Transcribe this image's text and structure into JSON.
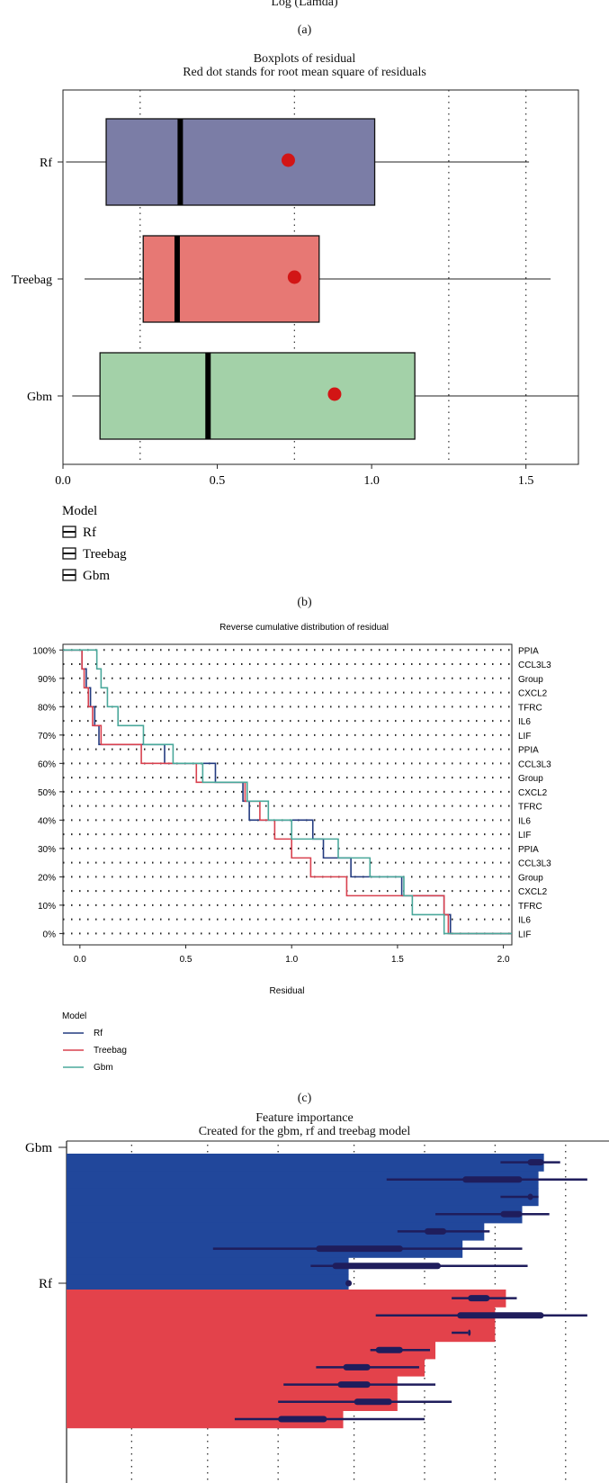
{
  "top_axis_label": "Log (Lamda)",
  "captions": {
    "a": "(a)",
    "b": "(b)",
    "c": "(c)"
  },
  "chart_data": [
    {
      "type": "boxplot",
      "title": "Boxplots of residual",
      "subtitle": "Red dot stands for root mean square of residuals",
      "xlim": [
        0.0,
        1.67
      ],
      "xticks": [
        0.0,
        0.5,
        1.0,
        1.5
      ],
      "xtick_labels": [
        "0.0",
        "0.5",
        "1.0",
        "1.5"
      ],
      "grid_x": [
        0.25,
        0.75,
        1.25,
        1.5
      ],
      "legend_title": "Model",
      "legend": [
        "Rf",
        "Treebag",
        "Gbm"
      ],
      "series": [
        {
          "name": "Rf",
          "color": "#7b7da6",
          "whisker_low": 0.01,
          "q1": 0.14,
          "median": 0.38,
          "q3": 1.01,
          "whisker_high": 1.51,
          "rmse": 0.73
        },
        {
          "name": "Treebag",
          "color": "#e77874",
          "whisker_low": 0.07,
          "q1": 0.26,
          "median": 0.37,
          "q3": 0.83,
          "whisker_high": 1.58,
          "rmse": 0.75
        },
        {
          "name": "Gbm",
          "color": "#a3d1a8",
          "whisker_low": 0.03,
          "q1": 0.12,
          "median": 0.47,
          "q3": 1.14,
          "whisker_high": 1.67,
          "rmse": 0.88
        }
      ]
    },
    {
      "type": "line",
      "title": "Reverse cumulative distribution of residual",
      "xlabel": "Residual",
      "xlim": [
        -0.08,
        2.04
      ],
      "xticks": [
        0.0,
        0.5,
        1.0,
        1.5,
        2.0
      ],
      "xtick_labels": [
        "0.0",
        "0.5",
        "1.0",
        "1.5",
        "2.0"
      ],
      "ylim": [
        -4,
        102
      ],
      "yticks": [
        0,
        10,
        20,
        30,
        40,
        50,
        60,
        70,
        80,
        90,
        100
      ],
      "ytick_labels": [
        "0%",
        "10%",
        "20%",
        "30%",
        "40%",
        "50%",
        "60%",
        "70%",
        "80%",
        "90%",
        "100%"
      ],
      "right_labels": [
        "PPIA",
        "CCL3L3",
        "Group",
        "CXCL2",
        "TFRC",
        "IL6",
        "LIF",
        "PPIA",
        "CCL3L3",
        "Group",
        "CXCL2",
        "TFRC",
        "IL6",
        "LIF",
        "PPIA",
        "CCL3L3",
        "Group",
        "CXCL2",
        "TFRC",
        "IL6",
        "LIF"
      ],
      "legend_title": "Model",
      "legend": [
        "Rf",
        "Treebag",
        "Gbm"
      ],
      "series": [
        {
          "name": "Rf",
          "color": "#233b80",
          "x": [
            0.01,
            0.03,
            0.05,
            0.07,
            0.09,
            0.4,
            0.64,
            0.77,
            0.8,
            1.1,
            1.15,
            1.28,
            1.52,
            1.72,
            1.75,
            1.88,
            2.04
          ]
        },
        {
          "name": "Treebag",
          "color": "#d8414f",
          "x": [
            0.01,
            0.02,
            0.04,
            0.06,
            0.1,
            0.29,
            0.55,
            0.78,
            0.85,
            0.92,
            1.0,
            1.09,
            1.26,
            1.72,
            1.74,
            1.84,
            2.04
          ]
        },
        {
          "name": "Gbm",
          "color": "#4aa89b",
          "x": [
            0.08,
            0.1,
            0.13,
            0.18,
            0.3,
            0.44,
            0.58,
            0.79,
            0.89,
            1.0,
            1.22,
            1.37,
            1.53,
            1.57,
            1.72,
            1.94,
            2.04
          ]
        }
      ]
    },
    {
      "type": "bar",
      "title": "Feature importance",
      "subtitle": "Created for the gbm, rf and treebag model",
      "xlim": [
        0.0,
        1.0
      ],
      "grid_x": [
        0.12,
        0.26,
        0.39,
        0.53,
        0.66,
        0.79,
        0.92
      ],
      "y_labels": [
        "Gbm",
        "Rf"
      ],
      "series": [
        {
          "name": "Gbm",
          "color": "#21479b",
          "bar_values": [
            0.88,
            0.87,
            0.87,
            0.84,
            0.77,
            0.73,
            0.52,
            0.52
          ],
          "whisker_low": [
            0.8,
            0.59,
            0.8,
            0.68,
            0.61,
            0.27,
            0.45,
            0.52
          ],
          "box_low": [
            0.85,
            0.73,
            0.85,
            0.8,
            0.66,
            0.46,
            0.49,
            0.52
          ],
          "box_high": [
            0.88,
            0.84,
            0.86,
            0.84,
            0.7,
            0.62,
            0.69,
            0.52
          ],
          "whisker_high": [
            0.91,
            0.96,
            0.87,
            0.89,
            0.78,
            0.84,
            0.85,
            0.52
          ]
        },
        {
          "name": "Rf",
          "color": "#e3424b",
          "bar_values": [
            0.81,
            0.79,
            0.79,
            0.68,
            0.66,
            0.61,
            0.61,
            0.51
          ],
          "whisker_low": [
            0.71,
            0.57,
            0.71,
            0.56,
            0.46,
            0.4,
            0.39,
            0.31
          ],
          "box_low": [
            0.74,
            0.72,
            0.74,
            0.57,
            0.51,
            0.5,
            0.53,
            0.39
          ],
          "box_high": [
            0.78,
            0.88,
            0.74,
            0.62,
            0.56,
            0.56,
            0.6,
            0.48
          ],
          "whisker_high": [
            0.83,
            0.96,
            0.74,
            0.67,
            0.65,
            0.68,
            0.71,
            0.66
          ]
        }
      ]
    }
  ]
}
